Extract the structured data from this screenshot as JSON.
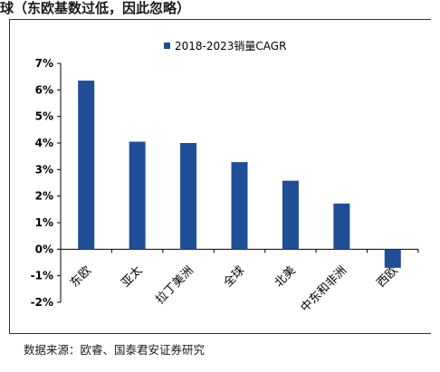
{
  "header": {
    "title": "球（东欧基数过低，因此忽略）"
  },
  "chart_data": {
    "type": "bar",
    "categories": [
      "东欧",
      "亚太",
      "拉丁美洲",
      "全球",
      "北美",
      "中东和非洲",
      "西欧"
    ],
    "series": [
      {
        "name": "2018-2023销量CAGR",
        "values": [
          6.35,
          4.05,
          4.0,
          3.28,
          2.58,
          1.72,
          -0.7
        ]
      }
    ],
    "y_tick_labels": [
      "7%",
      "6%",
      "5%",
      "4%",
      "3%",
      "2%",
      "1%",
      "0%",
      "-1%",
      "-2%"
    ],
    "y_tick_values": [
      7,
      6,
      5,
      4,
      3,
      2,
      1,
      0,
      -1,
      -2
    ],
    "ylim": [
      -2,
      7
    ],
    "legend_position": "top-center",
    "bar_color": "#1f4e96",
    "grid": false
  },
  "footer": {
    "source": "数据来源：欧睿、国泰君安证券研究"
  }
}
